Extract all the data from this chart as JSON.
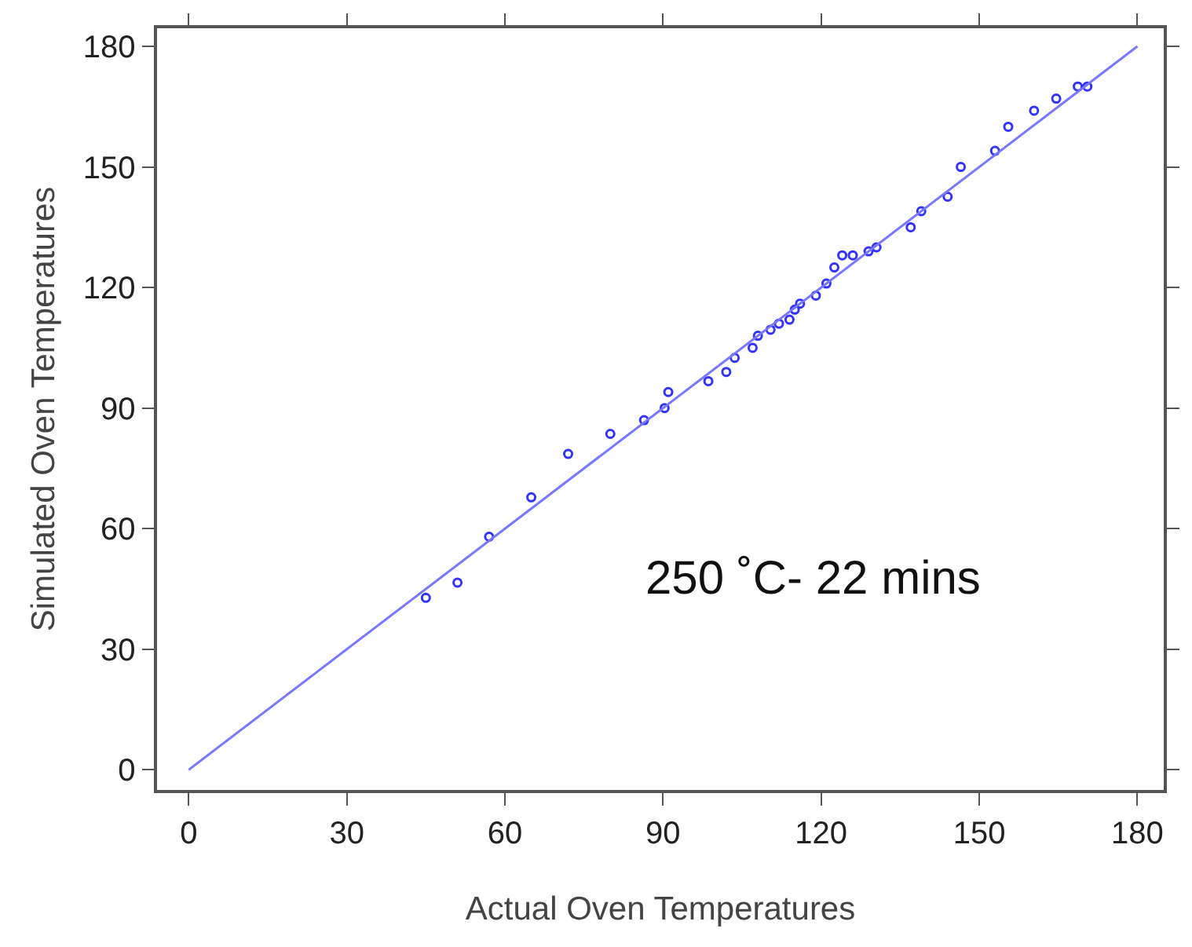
{
  "chart_data": {
    "type": "scatter",
    "xlabel": "Actual Oven Temperatures",
    "ylabel": "Simulated Oven Temperatures",
    "xlim": [
      -6,
      185
    ],
    "ylim": [
      -5,
      184.5
    ],
    "xticks": [
      0,
      30,
      60,
      90,
      120,
      150,
      180
    ],
    "yticks": [
      0,
      30,
      60,
      90,
      120,
      150,
      180
    ],
    "annotations": [
      "250 ˚C- 22 mins"
    ],
    "series": [
      {
        "marker": "circle",
        "color": "#3333ff",
        "x": [
          45,
          51,
          57,
          65,
          72,
          80,
          86.4,
          90.3,
          91,
          98.6,
          102,
          103.6,
          107,
          108,
          110.4,
          112,
          114,
          115,
          116,
          119,
          121,
          122.5,
          124,
          126,
          129,
          130.5,
          137,
          139,
          144,
          146.5,
          153,
          155.5,
          160.4,
          164.6,
          168.7,
          170.5
        ],
        "values": [
          42.8,
          46.6,
          58,
          67.8,
          78.6,
          83.6,
          87,
          90,
          94,
          96.7,
          99,
          102.5,
          105,
          108,
          109.5,
          111,
          112,
          114.5,
          116,
          118,
          121,
          125,
          128,
          128,
          129,
          130,
          135,
          139,
          142.6,
          150,
          154,
          160,
          164,
          167,
          170,
          170
        ]
      },
      {
        "type": "line",
        "marker": "none",
        "color": "#7777ff",
        "x": [
          0,
          180
        ],
        "values": [
          0,
          180
        ]
      }
    ]
  }
}
